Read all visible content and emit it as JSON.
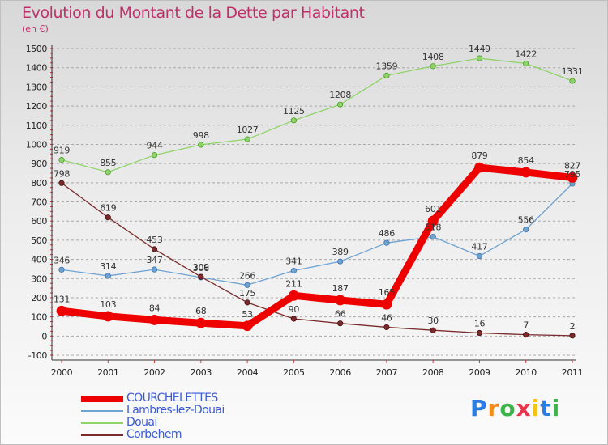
{
  "header": {
    "title": "Evolution du Montant de la Dette par Habitant",
    "unit": "(en €)"
  },
  "brand": {
    "letters": [
      "P",
      "r",
      "o",
      "x",
      "i",
      "t",
      "i"
    ],
    "colors": [
      "#2a7de1",
      "#f28c1a",
      "#3bb54a",
      "#e8354b",
      "#f2c318",
      "#2a7de1",
      "#3bb54a"
    ]
  },
  "chart_data": {
    "type": "line",
    "title": "Evolution du Montant de la Dette par Habitant",
    "subtitle": "(en €)",
    "xlabel": "",
    "ylabel": "",
    "x": [
      "2000",
      "2001",
      "2002",
      "2003",
      "2004",
      "2005",
      "2006",
      "2007",
      "2008",
      "2009",
      "2010",
      "2011"
    ],
    "yticks": [
      -100,
      0,
      100,
      200,
      300,
      400,
      500,
      600,
      700,
      800,
      900,
      1000,
      1100,
      1200,
      1300,
      1400,
      1500
    ],
    "ylim": [
      -100,
      1500
    ],
    "grid": "horizontal dashed",
    "legend_position": "bottom-left",
    "series": [
      {
        "name": "COURCHELETTES",
        "color": "#ee0000",
        "values": [
          131,
          103,
          84,
          68,
          53,
          211,
          187,
          165,
          601,
          879,
          854,
          827
        ]
      },
      {
        "name": "Lambres-lez-Douai",
        "color": "#6fa3d2",
        "values": [
          346,
          314,
          347,
          306,
          266,
          341,
          389,
          486,
          518,
          417,
          556,
          795
        ]
      },
      {
        "name": "Douai",
        "color": "#8fd468",
        "values": [
          919,
          855,
          944,
          998,
          1027,
          1125,
          1208,
          1359,
          1408,
          1449,
          1422,
          1331
        ]
      },
      {
        "name": "Corbehem",
        "color": "#7a2a2a",
        "values": [
          798,
          619,
          453,
          309,
          175,
          90,
          66,
          46,
          30,
          16,
          7,
          2
        ]
      }
    ]
  }
}
